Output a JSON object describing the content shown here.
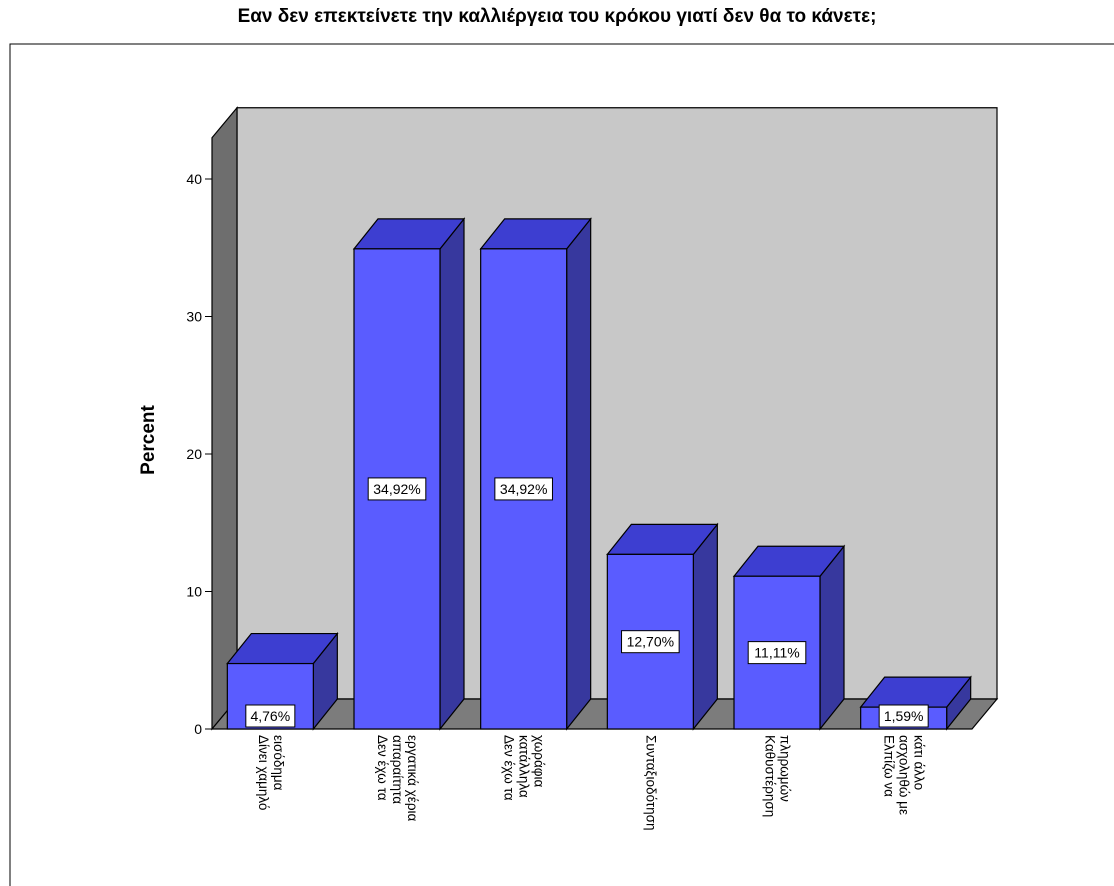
{
  "chart_data": {
    "type": "bar",
    "title": "Εαν δεν επεκτείνετε την καλλιέργεια του κρόκου γιατί δεν θα το κάνετε;",
    "xlabel": "",
    "ylabel": "Percent",
    "ylim": [
      0,
      43
    ],
    "yticks": [
      0,
      10,
      20,
      30,
      40
    ],
    "ytick_labels": [
      "0",
      "10",
      "20",
      "30",
      "40"
    ],
    "categories": [
      [
        "Δίνει χαμηλό",
        "εισόδημα"
      ],
      [
        "Δεν έχω τα",
        "απαραίτητα",
        "εργατικά χέρια"
      ],
      [
        "Δεν έχω τα",
        "κατάλληλα",
        "χωράφια"
      ],
      [
        "Συνταξιοδότηση"
      ],
      [
        "Καθυστέρηση",
        "πληρωμών"
      ],
      [
        "Ελπίζω να",
        "ασχοληθώ με",
        "κάτι άλλο"
      ]
    ],
    "values": [
      4.76,
      34.92,
      34.92,
      12.7,
      11.11,
      1.59
    ],
    "data_labels": [
      "4,76%",
      "34,92%",
      "34,92%",
      "12,70%",
      "11,11%",
      "1,59%"
    ],
    "grid": false,
    "style": "3d",
    "colors": {
      "bar_front": "#5a5cff",
      "bar_top": "#3d3ed1",
      "bar_side": "#37389e",
      "back_wall": "#c8c8c8",
      "side_wall": "#6e6e6e",
      "floor": "#7c7c7c"
    }
  }
}
